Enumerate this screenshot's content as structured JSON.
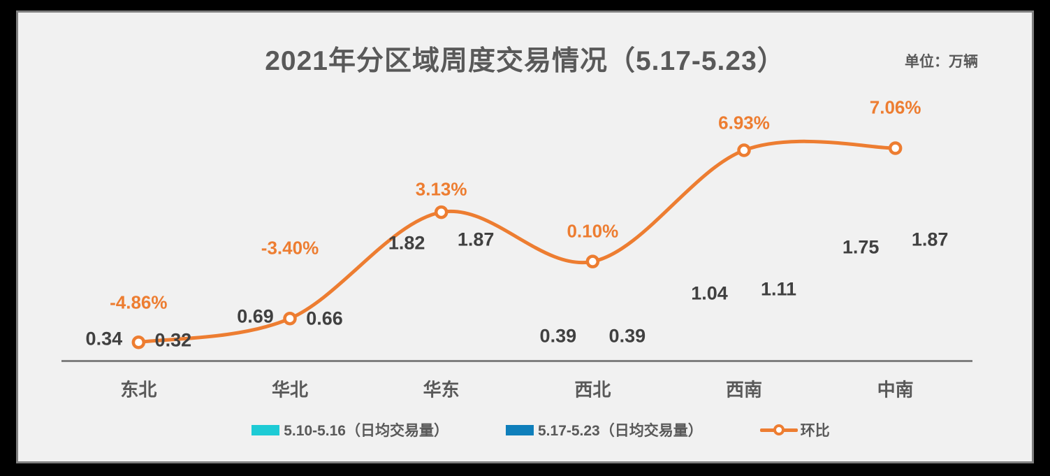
{
  "chart": {
    "title": "2021年分区域周度交易情况（5.17-5.23）",
    "unit_label": "单位：万辆"
  },
  "chart_data": {
    "type": "bar",
    "title": "2021年分区域周度交易情况（5.17-5.23）",
    "unit": "单位：万辆",
    "categories": [
      "东北",
      "华北",
      "华东",
      "西北",
      "西南",
      "中南"
    ],
    "series": [
      {
        "name": "5.10-5.16（日均交易量）",
        "type": "bar",
        "color": "#1ECBD5",
        "values": [
          0.34,
          0.69,
          1.82,
          0.39,
          1.04,
          1.75
        ],
        "value_labels": [
          "0.34",
          "0.69",
          "1.82",
          "0.39",
          "1.04",
          "1.75"
        ]
      },
      {
        "name": "5.17-5.23（日均交易量）",
        "type": "bar",
        "color": "#0F7FBB",
        "values": [
          0.32,
          0.66,
          1.87,
          0.39,
          1.11,
          1.87
        ],
        "value_labels": [
          "0.32",
          "0.66",
          "1.87",
          "0.39",
          "1.11",
          "1.87"
        ]
      },
      {
        "name": "环比",
        "type": "line",
        "color": "#ED7D31",
        "marker": "circle-white-fill",
        "values": [
          -4.86,
          -3.4,
          3.13,
          0.1,
          6.93,
          7.06
        ],
        "value_labels": [
          "-4.86%",
          "-3.40%",
          "3.13%",
          "0.10%",
          "6.93%",
          "7.06%"
        ]
      }
    ],
    "legend_position": "bottom",
    "gridlines": false,
    "value_axis_visible": false,
    "category_axis_visible": true
  },
  "legend": {
    "items": [
      {
        "label": "5.10-5.16（日均交易量）",
        "type": "bar",
        "color": "#1ECBD5"
      },
      {
        "label": "5.17-5.23（日均交易量）",
        "type": "bar",
        "color": "#0F7FBB"
      },
      {
        "label": "环比",
        "type": "line",
        "color": "#ED7D31"
      }
    ]
  },
  "colors": {
    "outer_background": "#000000",
    "panel_background": "#F1F1F1",
    "panel_border": "#7F7F7F",
    "axis_line": "#7F7F7F",
    "title_text": "#595959",
    "bar_value_text": "#404040",
    "category_text": "#595959",
    "accent_cyan": "#1ECBD5",
    "accent_blue": "#0F7FBB",
    "accent_orange": "#ED7D31"
  }
}
